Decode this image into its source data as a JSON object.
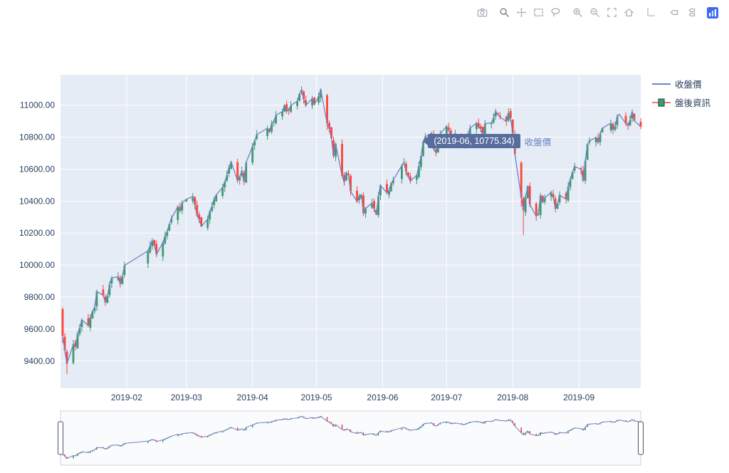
{
  "colors": {
    "plot_bg": "#e5ecf6",
    "grid": "#ffffff",
    "line": "#6f83c4",
    "increasing": "#3D9970",
    "decreasing": "#FF4136",
    "tooltip_bg": "#566d9e",
    "tick_text": "#2a3f5f",
    "modebar_icon": "#a8afbc",
    "logo_blue": "#3a6af0",
    "rangeslider_bg": "#fafbfd",
    "rangeslider_border": "#cdd3de"
  },
  "modebar": {
    "groups": [
      [
        "camera-icon"
      ],
      [
        "zoom-icon",
        "pan-icon",
        "box-select-icon",
        "lasso-select-icon"
      ],
      [
        "zoom-in-icon",
        "zoom-out-icon",
        "autoscale-icon",
        "reset-axes-icon"
      ],
      [
        "spikelines-icon"
      ],
      [
        "hover-closest-icon",
        "hover-compare-icon"
      ],
      [
        "plotly-logo-icon"
      ]
    ],
    "active": "zoom-icon"
  },
  "legend": {
    "items": [
      {
        "label": "收盤價",
        "type": "line"
      },
      {
        "label": "盤後資訊",
        "type": "candlestick"
      }
    ]
  },
  "tooltip": {
    "text": "(2019-06, 10775.34)",
    "trace_label": "收盤價",
    "anchor_date": "2019-06-20",
    "anchor_value": 10775.34
  },
  "chart_data": {
    "type": "candlestick",
    "title": "",
    "legend_position": "top-right",
    "grid": true,
    "rangeslider": true,
    "series": [
      {
        "name": "收盤價",
        "type": "line",
        "color": "#6f83c4"
      },
      {
        "name": "盤後資訊",
        "type": "candlestick",
        "increasing_color": "#3D9970",
        "decreasing_color": "#FF4136"
      }
    ],
    "x_axis": {
      "range": [
        "2019-01-01",
        "2019-09-30"
      ],
      "ticks": [
        {
          "label": "2019-02",
          "date": "2019-02-01"
        },
        {
          "label": "2019-03",
          "date": "2019-03-01"
        },
        {
          "label": "2019-04",
          "date": "2019-04-01"
        },
        {
          "label": "2019-05",
          "date": "2019-05-01"
        },
        {
          "label": "2019-06",
          "date": "2019-06-01"
        },
        {
          "label": "2019-07",
          "date": "2019-07-01"
        },
        {
          "label": "2019-08",
          "date": "2019-08-01"
        },
        {
          "label": "2019-09",
          "date": "2019-09-01"
        }
      ]
    },
    "y_axis": {
      "range": [
        9230,
        11190
      ],
      "ticks": [
        {
          "label": "9400.00",
          "value": 9400
        },
        {
          "label": "9600.00",
          "value": 9600
        },
        {
          "label": "9800.00",
          "value": 9800
        },
        {
          "label": "10000.00",
          "value": 10000
        },
        {
          "label": "10200.00",
          "value": 10200
        },
        {
          "label": "10400.00",
          "value": 10400
        },
        {
          "label": "10600.00",
          "value": 10600
        },
        {
          "label": "10800.00",
          "value": 10800
        },
        {
          "label": "11000.00",
          "value": 11000
        }
      ]
    },
    "points": [
      [
        "2019-01-02",
        9558,
        9725,
        9736,
        9512
      ],
      [
        "2019-01-03",
        9466
      ],
      [
        "2019-01-04",
        9382,
        9460,
        9470,
        9319
      ],
      [
        "2019-01-07",
        9505
      ],
      [
        "2019-01-08",
        9489
      ],
      [
        "2019-01-09",
        9573
      ],
      [
        "2019-01-10",
        9609
      ],
      [
        "2019-01-11",
        9658
      ],
      [
        "2019-01-14",
        9621
      ],
      [
        "2019-01-15",
        9673
      ],
      [
        "2019-01-16",
        9712
      ],
      [
        "2019-01-17",
        9736
      ],
      [
        "2019-01-18",
        9836
      ],
      [
        "2019-01-21",
        9811
      ],
      [
        "2019-01-22",
        9767
      ],
      [
        "2019-01-23",
        9809
      ],
      [
        "2019-01-24",
        9876
      ],
      [
        "2019-01-25",
        9921
      ],
      [
        "2019-01-28",
        9927
      ],
      [
        "2019-01-29",
        9882
      ],
      [
        "2019-01-30",
        9932
      ],
      [
        "2019-01-31",
        9998
      ],
      [
        "2019-02-11",
        10089
      ],
      [
        "2019-02-12",
        10121
      ],
      [
        "2019-02-13",
        10153
      ],
      [
        "2019-02-14",
        10123
      ],
      [
        "2019-02-15",
        10066
      ],
      [
        "2019-02-18",
        10142
      ],
      [
        "2019-02-19",
        10182
      ],
      [
        "2019-02-20",
        10209
      ],
      [
        "2019-02-21",
        10256
      ],
      [
        "2019-02-22",
        10291
      ],
      [
        "2019-02-25",
        10366
      ],
      [
        "2019-02-26",
        10338
      ],
      [
        "2019-02-27",
        10389
      ],
      [
        "2019-03-01",
        10412
      ],
      [
        "2019-03-04",
        10429
      ],
      [
        "2019-03-05",
        10376
      ],
      [
        "2019-03-06",
        10311
      ],
      [
        "2019-03-07",
        10286
      ],
      [
        "2019-03-08",
        10241
      ],
      [
        "2019-03-11",
        10288
      ],
      [
        "2019-03-12",
        10336
      ],
      [
        "2019-03-13",
        10367
      ],
      [
        "2019-03-14",
        10411
      ],
      [
        "2019-03-15",
        10439
      ],
      [
        "2019-03-18",
        10486
      ],
      [
        "2019-03-19",
        10521
      ],
      [
        "2019-03-20",
        10561
      ],
      [
        "2019-03-21",
        10611
      ],
      [
        "2019-03-22",
        10646
      ],
      [
        "2019-03-25",
        10528
      ],
      [
        "2019-03-26",
        10552
      ],
      [
        "2019-03-27",
        10588
      ],
      [
        "2019-03-28",
        10522
      ],
      [
        "2019-03-29",
        10641
      ],
      [
        "2019-04-01",
        10742
      ],
      [
        "2019-04-02",
        10778
      ],
      [
        "2019-04-03",
        10816
      ],
      [
        "2019-04-08",
        10856
      ],
      [
        "2019-04-09",
        10832
      ],
      [
        "2019-04-10",
        10885
      ],
      [
        "2019-04-11",
        10899
      ],
      [
        "2019-04-12",
        10936
      ],
      [
        "2019-04-15",
        10960
      ],
      [
        "2019-04-16",
        11000
      ],
      [
        "2019-04-17",
        10962
      ],
      [
        "2019-04-18",
        10968
      ],
      [
        "2019-04-19",
        10998
      ],
      [
        "2019-04-22",
        11025
      ],
      [
        "2019-04-23",
        11072
      ],
      [
        "2019-04-24",
        11096
      ],
      [
        "2019-04-25",
        11038
      ],
      [
        "2019-04-26",
        10998
      ],
      [
        "2019-04-29",
        11042
      ],
      [
        "2019-04-30",
        11004
      ],
      [
        "2019-05-02",
        11056
      ],
      [
        "2019-05-03",
        11096
      ],
      [
        "2019-05-06",
        10886,
        11062,
        11070,
        10846
      ],
      [
        "2019-05-07",
        10852
      ],
      [
        "2019-05-08",
        10793
      ],
      [
        "2019-05-09",
        10684
      ],
      [
        "2019-05-10",
        10758
      ],
      [
        "2019-05-13",
        10558
      ],
      [
        "2019-05-14",
        10518
      ],
      [
        "2019-05-15",
        10580
      ],
      [
        "2019-05-16",
        10562
      ],
      [
        "2019-05-17",
        10462
      ],
      [
        "2019-05-20",
        10397
      ],
      [
        "2019-05-21",
        10429
      ],
      [
        "2019-05-22",
        10441
      ],
      [
        "2019-05-23",
        10323
      ],
      [
        "2019-05-24",
        10354
      ],
      [
        "2019-05-27",
        10388
      ],
      [
        "2019-05-28",
        10353
      ],
      [
        "2019-05-29",
        10316
      ],
      [
        "2019-05-30",
        10432
      ],
      [
        "2019-05-31",
        10498
      ],
      [
        "2019-06-03",
        10452
      ],
      [
        "2019-06-04",
        10468
      ],
      [
        "2019-06-05",
        10512
      ],
      [
        "2019-06-06",
        10532
      ],
      [
        "2019-06-10",
        10622
      ],
      [
        "2019-06-11",
        10642
      ],
      [
        "2019-06-12",
        10582
      ],
      [
        "2019-06-13",
        10552
      ],
      [
        "2019-06-14",
        10525
      ],
      [
        "2019-06-17",
        10563
      ],
      [
        "2019-06-18",
        10619
      ],
      [
        "2019-06-19",
        10682
      ],
      [
        "2019-06-20",
        10772
      ],
      [
        "2019-06-21",
        10803
      ],
      [
        "2019-06-24",
        10825
      ],
      [
        "2019-06-25",
        10725
      ],
      [
        "2019-06-26",
        10702
      ],
      [
        "2019-06-27",
        10751
      ],
      [
        "2019-06-28",
        10821
      ],
      [
        "2019-07-01",
        10868
      ],
      [
        "2019-07-02",
        10842
      ],
      [
        "2019-07-03",
        10785
      ],
      [
        "2019-07-04",
        10812
      ],
      [
        "2019-07-05",
        10824
      ],
      [
        "2019-07-08",
        10772
      ],
      [
        "2019-07-09",
        10747
      ],
      [
        "2019-07-10",
        10792
      ],
      [
        "2019-07-11",
        10824
      ],
      [
        "2019-07-12",
        10856
      ],
      [
        "2019-07-15",
        10888
      ],
      [
        "2019-07-16",
        10862
      ],
      [
        "2019-07-17",
        10852
      ],
      [
        "2019-07-18",
        10808
      ],
      [
        "2019-07-19",
        10885
      ],
      [
        "2019-07-22",
        10889
      ],
      [
        "2019-07-23",
        10922
      ],
      [
        "2019-07-24",
        10962
      ],
      [
        "2019-07-25",
        10942
      ],
      [
        "2019-07-26",
        10926
      ],
      [
        "2019-07-29",
        10898
      ],
      [
        "2019-07-30",
        10952
      ],
      [
        "2019-07-31",
        10918
      ],
      [
        "2019-08-01",
        10824
      ],
      [
        "2019-08-02",
        10694
      ],
      [
        "2019-08-05",
        10423,
        10640,
        10650,
        10365
      ],
      [
        "2019-08-06",
        10342,
        10420,
        10430,
        10188
      ],
      [
        "2019-08-07",
        10426
      ],
      [
        "2019-08-08",
        10494
      ],
      [
        "2019-08-09",
        10379
      ],
      [
        "2019-08-12",
        10306
      ],
      [
        "2019-08-13",
        10322
      ],
      [
        "2019-08-14",
        10436
      ],
      [
        "2019-08-15",
        10392
      ],
      [
        "2019-08-16",
        10420
      ],
      [
        "2019-08-19",
        10456
      ],
      [
        "2019-08-20",
        10422
      ],
      [
        "2019-08-21",
        10353
      ],
      [
        "2019-08-22",
        10386
      ],
      [
        "2019-08-23",
        10438
      ],
      [
        "2019-08-26",
        10412
      ],
      [
        "2019-08-27",
        10492
      ],
      [
        "2019-08-28",
        10536
      ],
      [
        "2019-08-29",
        10582
      ],
      [
        "2019-08-30",
        10618
      ],
      [
        "2019-09-02",
        10598
      ],
      [
        "2019-09-03",
        10528
      ],
      [
        "2019-09-04",
        10652
      ],
      [
        "2019-09-05",
        10756
      ],
      [
        "2019-09-06",
        10778
      ],
      [
        "2019-09-09",
        10798
      ],
      [
        "2019-09-10",
        10766
      ],
      [
        "2019-09-11",
        10822
      ],
      [
        "2019-09-12",
        10856
      ],
      [
        "2019-09-16",
        10888
      ],
      [
        "2019-09-17",
        10846
      ],
      [
        "2019-09-18",
        10868
      ],
      [
        "2019-09-19",
        10928
      ],
      [
        "2019-09-20",
        10942
      ],
      [
        "2019-09-23",
        10886
      ],
      [
        "2019-09-24",
        10872
      ],
      [
        "2019-09-25",
        10908
      ],
      [
        "2019-09-26",
        10958
      ],
      [
        "2019-09-27",
        10902
      ],
      [
        "2019-09-30",
        10866
      ]
    ]
  }
}
